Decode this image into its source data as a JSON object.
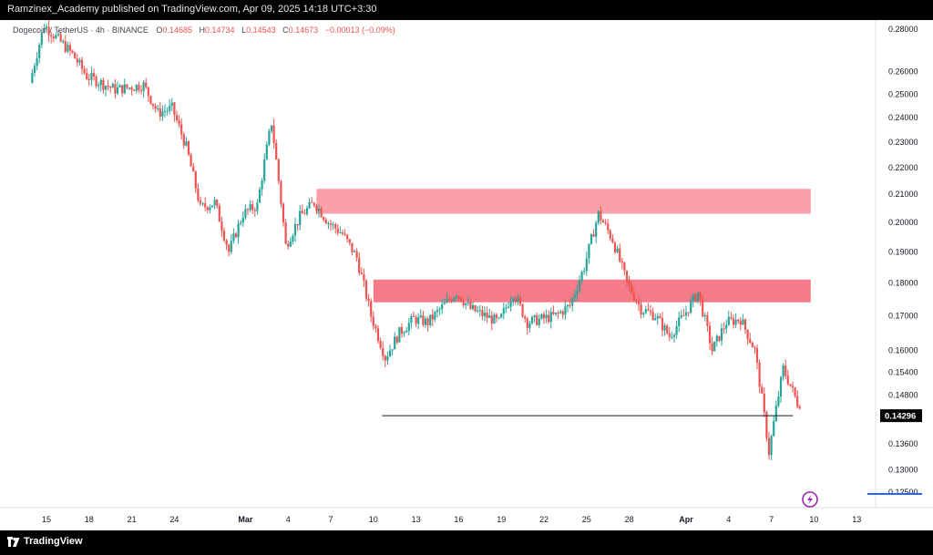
{
  "header": {
    "publisher_line": "Ramzinex_Academy published on TradingView.com, Apr 09, 2025 14:18 UTC+3:30"
  },
  "legend": {
    "symbol": "Dogecoin / TetherUS · 4h · BINANCE",
    "o_label": "O",
    "o_value": "0.14685",
    "h_label": "H",
    "h_value": "0.14734",
    "l_label": "L",
    "l_value": "0.14543",
    "c_label": "C",
    "c_value": "0.14673",
    "change": "−0.00013 (−0.09%)"
  },
  "footer": {
    "brand": "TradingView"
  },
  "colors": {
    "up": "#26a69a",
    "down": "#ef5350",
    "zone_upper": "#f9a0a8",
    "zone_lower": "#f47b87",
    "price_tag": "#000000",
    "accent": "#9c27b0"
  },
  "chart_data": {
    "type": "candlestick",
    "interval": "4h",
    "exchange": "BINANCE",
    "y_axis": {
      "scale": "log",
      "range": [
        0.118,
        0.288
      ],
      "ticks": [
        "0.28000",
        "0.26000",
        "0.25000",
        "0.24000",
        "0.23000",
        "0.22000",
        "0.21000",
        "0.20000",
        "0.19000",
        "0.18000",
        "0.17000",
        "0.16000",
        "0.15400",
        "0.14800",
        "0.13600",
        "0.13000",
        "0.12500"
      ]
    },
    "x_axis": {
      "ticks": [
        "15",
        "18",
        "21",
        "24",
        "Mar",
        "4",
        "7",
        "10",
        "13",
        "16",
        "19",
        "22",
        "25",
        "28",
        "Apr",
        "4",
        "7",
        "10",
        "13"
      ]
    },
    "current_price": "0.14296",
    "price_anchors": [
      {
        "date": "2025-02-14",
        "price": 0.255
      },
      {
        "date": "2025-02-15",
        "price": 0.282
      },
      {
        "date": "2025-02-17",
        "price": 0.268
      },
      {
        "date": "2025-02-18",
        "price": 0.258
      },
      {
        "date": "2025-02-20",
        "price": 0.252
      },
      {
        "date": "2025-02-22",
        "price": 0.254
      },
      {
        "date": "2025-02-23",
        "price": 0.242
      },
      {
        "date": "2025-02-24",
        "price": 0.244
      },
      {
        "date": "2025-02-25",
        "price": 0.228
      },
      {
        "date": "2025-02-26",
        "price": 0.205
      },
      {
        "date": "2025-02-27",
        "price": 0.207
      },
      {
        "date": "2025-02-28",
        "price": 0.19
      },
      {
        "date": "2025-03-01",
        "price": 0.203
      },
      {
        "date": "2025-03-02",
        "price": 0.206
      },
      {
        "date": "2025-03-03",
        "price": 0.238
      },
      {
        "date": "2025-03-04",
        "price": 0.192
      },
      {
        "date": "2025-03-05",
        "price": 0.202
      },
      {
        "date": "2025-03-06",
        "price": 0.207
      },
      {
        "date": "2025-03-07",
        "price": 0.2
      },
      {
        "date": "2025-03-08",
        "price": 0.196
      },
      {
        "date": "2025-03-09",
        "price": 0.188
      },
      {
        "date": "2025-03-10",
        "price": 0.17
      },
      {
        "date": "2025-03-11",
        "price": 0.158
      },
      {
        "date": "2025-03-12",
        "price": 0.165
      },
      {
        "date": "2025-03-13",
        "price": 0.169
      },
      {
        "date": "2025-03-14",
        "price": 0.168
      },
      {
        "date": "2025-03-16",
        "price": 0.177
      },
      {
        "date": "2025-03-17",
        "price": 0.172
      },
      {
        "date": "2025-03-19",
        "price": 0.168
      },
      {
        "date": "2025-03-20",
        "price": 0.177
      },
      {
        "date": "2025-03-21",
        "price": 0.168
      },
      {
        "date": "2025-03-23",
        "price": 0.17
      },
      {
        "date": "2025-03-24",
        "price": 0.173
      },
      {
        "date": "2025-03-25",
        "price": 0.185
      },
      {
        "date": "2025-03-26",
        "price": 0.203
      },
      {
        "date": "2025-03-27",
        "price": 0.194
      },
      {
        "date": "2025-03-28",
        "price": 0.18
      },
      {
        "date": "2025-03-29",
        "price": 0.172
      },
      {
        "date": "2025-03-30",
        "price": 0.17
      },
      {
        "date": "2025-03-31",
        "price": 0.164
      },
      {
        "date": "2025-04-01",
        "price": 0.17
      },
      {
        "date": "2025-04-02",
        "price": 0.177
      },
      {
        "date": "2025-04-03",
        "price": 0.16
      },
      {
        "date": "2025-04-04",
        "price": 0.168
      },
      {
        "date": "2025-04-05",
        "price": 0.169
      },
      {
        "date": "2025-04-06",
        "price": 0.16
      },
      {
        "date": "2025-04-07",
        "price": 0.134
      },
      {
        "date": "2025-04-08",
        "price": 0.155
      },
      {
        "date": "2025-04-09",
        "price": 0.146
      }
    ],
    "zones": [
      {
        "from": "2025-03-06",
        "to": "2025-04-09",
        "low": 0.203,
        "high": 0.212
      },
      {
        "from": "2025-03-10",
        "to": "2025-04-09",
        "low": 0.174,
        "high": 0.181
      }
    ],
    "support_line": {
      "from": "2025-03-11",
      "to": "2025-04-08",
      "price": 0.1428
    }
  }
}
